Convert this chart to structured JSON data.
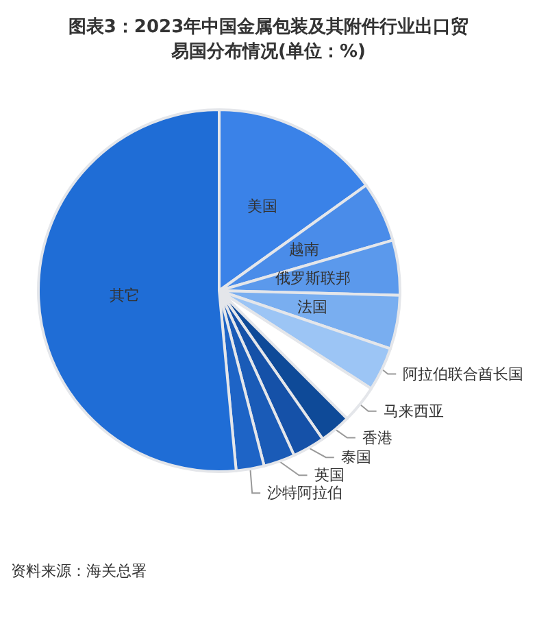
{
  "chart_data": {
    "type": "pie",
    "title": "图表3：2023年中国金属包装及其附件行业出口贸易国分布情况(单位：%)",
    "categories": [
      "美国",
      "越南",
      "俄罗斯联邦",
      "法国",
      "阿拉伯联合酋长国",
      "马来西亚",
      "香港",
      "泰国",
      "英国",
      "沙特阿拉伯",
      "其它"
    ],
    "values": [
      15.1,
      5.4,
      4.9,
      4.8,
      3.9,
      3.4,
      2.8,
      2.9,
      2.8,
      2.5,
      51.5
    ],
    "colors": [
      "#3a82e8",
      "#4a8ce9",
      "#5b99ec",
      "#79aef0",
      "#9cc5f5",
      "#ffffff",
      "#0e4a98",
      "#1551a8",
      "#1a5bb7",
      "#1e64c6",
      "#1f6dd6"
    ],
    "annotations": [
      "资料来源：海关总署"
    ],
    "legend": false
  }
}
